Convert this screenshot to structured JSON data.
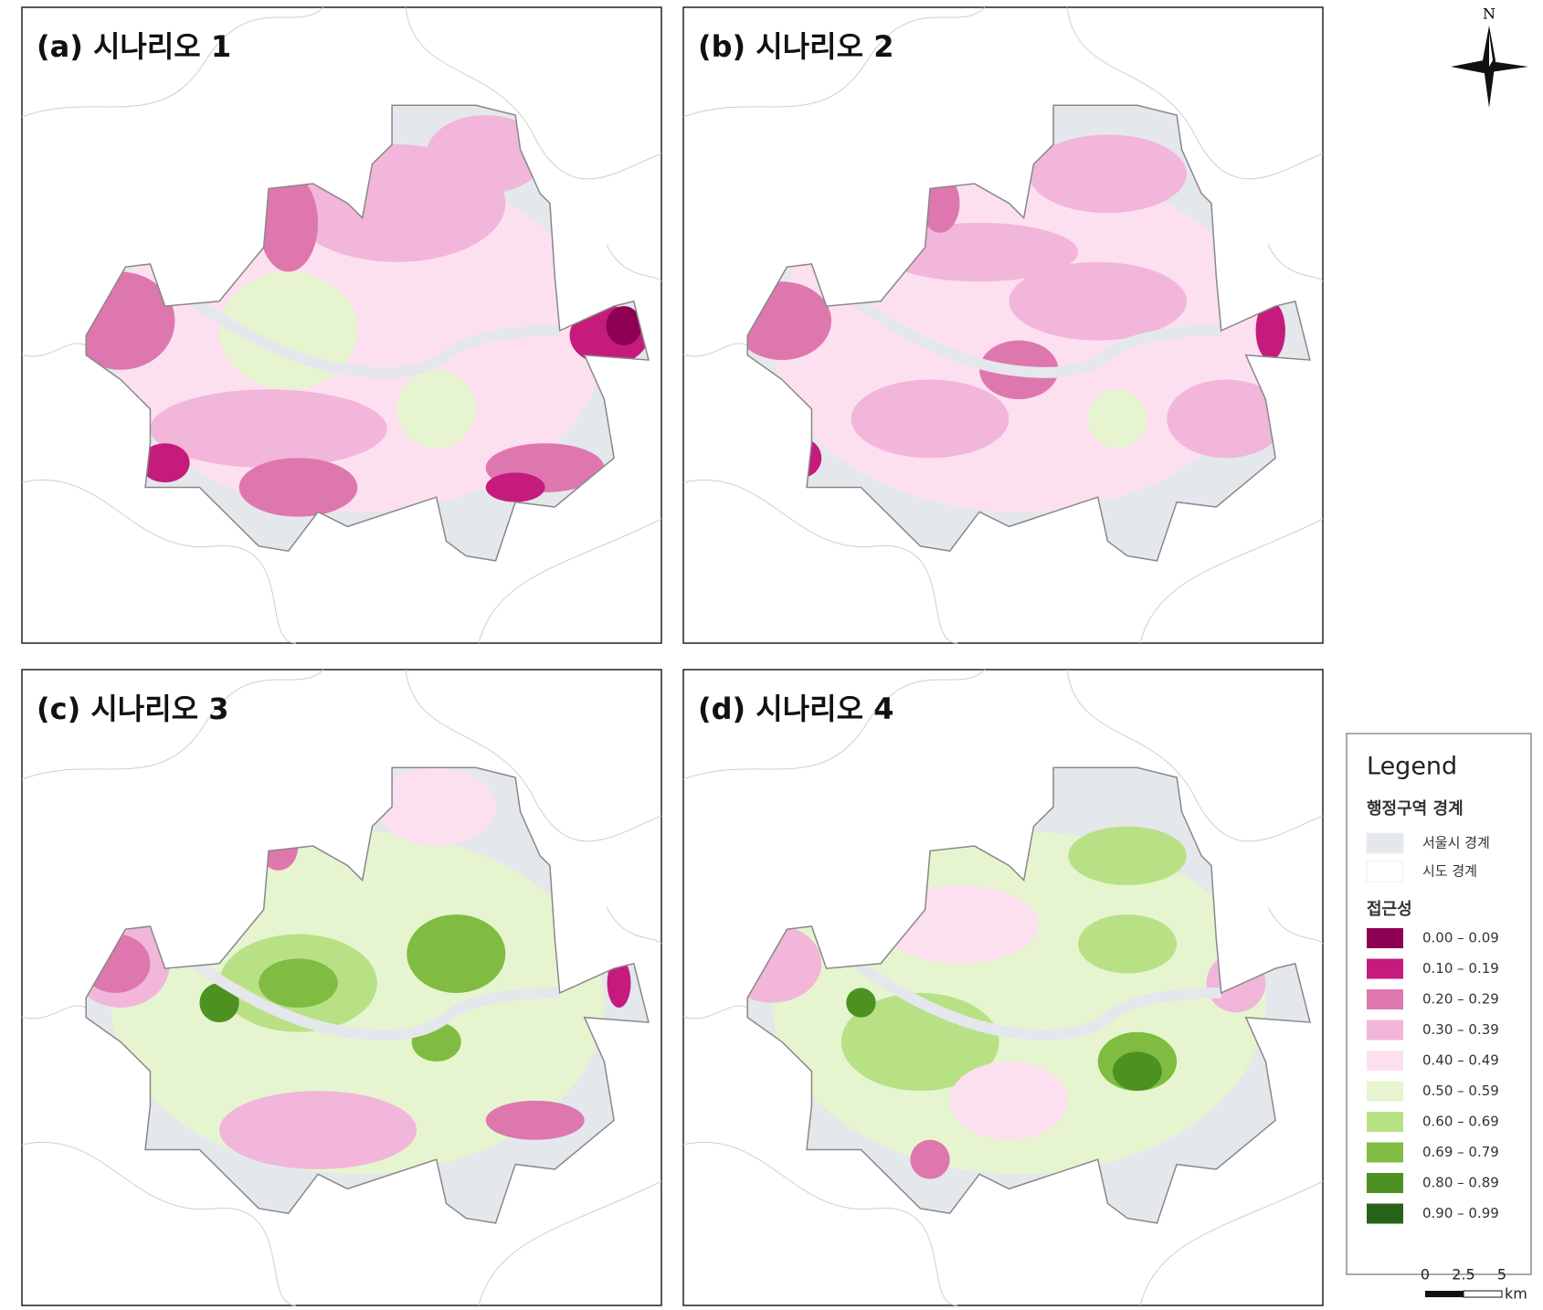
{
  "north": "N",
  "panels": [
    {
      "title": "(a) 시나리오 1"
    },
    {
      "title": "(b) 시나리오 2"
    },
    {
      "title": "(c) 시나리오 3"
    },
    {
      "title": "(d) 시나리오 4"
    }
  ],
  "legend": {
    "title": "Legend",
    "boundary": {
      "heading": "행정구역 경계",
      "items": [
        {
          "label": "서울시 경계",
          "color": "#e4e7eb"
        },
        {
          "label": "시도 경계",
          "color": "#ffffff"
        }
      ]
    },
    "accessibility": {
      "heading": "접근성",
      "items": [
        {
          "label": "0.00 – 0.09",
          "color": "#8e0152"
        },
        {
          "label": "0.10 – 0.19",
          "color": "#c51b7d"
        },
        {
          "label": "0.20 – 0.29",
          "color": "#de77ae"
        },
        {
          "label": "0.30 – 0.39",
          "color": "#f1b6da"
        },
        {
          "label": "0.40 – 0.49",
          "color": "#fde0ef"
        },
        {
          "label": "0.50 – 0.59",
          "color": "#e6f5d0"
        },
        {
          "label": "0.60 – 0.69",
          "color": "#b8e186"
        },
        {
          "label": "0.69 – 0.79",
          "color": "#7fbc41"
        },
        {
          "label": "0.80 – 0.89",
          "color": "#4d9221"
        },
        {
          "label": "0.90 – 0.99",
          "color": "#276419"
        }
      ]
    }
  },
  "scale_bar": {
    "ticks": [
      "0",
      "2.5",
      "5"
    ],
    "unit": "km"
  }
}
